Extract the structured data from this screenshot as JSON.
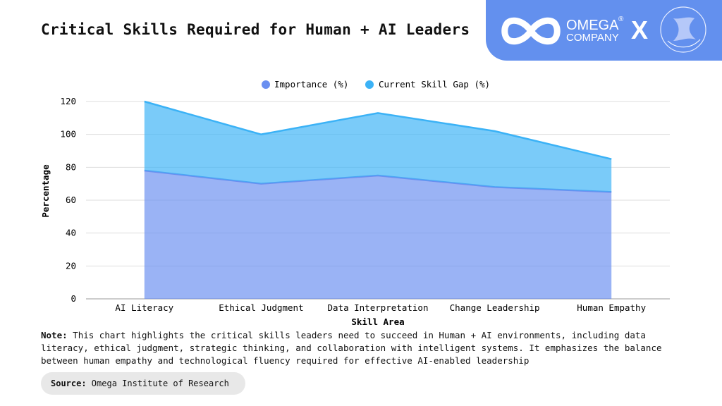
{
  "title": "Critical Skills Required for Human + AI Leaders",
  "logo": {
    "brand_line1": "OMEGA",
    "brand_line2": "COMPANY",
    "registered": "®",
    "separator": "X"
  },
  "chart_data": {
    "type": "area",
    "stacked": true,
    "categories": [
      "AI Literacy",
      "Ethical Judgment",
      "Data Interpretation",
      "Change Leadership",
      "Human Empathy"
    ],
    "series": [
      {
        "name": "Importance (%)",
        "values": [
          78,
          70,
          75,
          68,
          65
        ],
        "color": "#6a8ff0"
      },
      {
        "name": "Current Skill Gap (%)",
        "values": [
          42,
          30,
          38,
          34,
          20
        ],
        "color": "#3bb2f6"
      }
    ],
    "xlabel": "Skill Area",
    "ylabel": "Percentage",
    "ylim": [
      0,
      120
    ],
    "yticks": [
      0,
      20,
      40,
      60,
      80,
      100,
      120
    ],
    "grid": true,
    "legend": "top-center"
  },
  "note": {
    "label": "Note:",
    "text": " This chart highlights the critical skills leaders need to succeed in Human + AI environments, including data literacy, ethical judgment, strategic thinking, and collaboration with intelligent systems. It emphasizes the balance between human empathy and technological fluency required for effective AI-enabled leadership"
  },
  "source": {
    "label": "Source:",
    "text": " Omega Institute of Research"
  }
}
